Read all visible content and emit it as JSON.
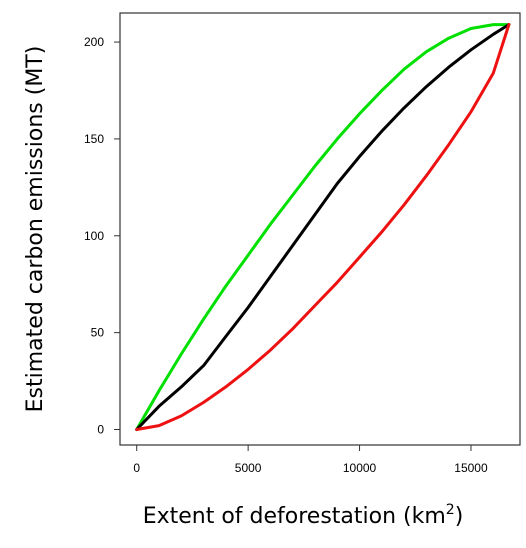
{
  "chart_data": {
    "type": "line",
    "title": "",
    "xlabel": "Extent of deforestation (km",
    "xlabel_superscript": "2",
    "xlabel_suffix": ")",
    "ylabel": "Estimated carbon emissions (MT)",
    "xlim": [
      -750,
      17200
    ],
    "ylim": [
      -8,
      215
    ],
    "xticks": [
      0,
      5000,
      10000,
      15000
    ],
    "yticks": [
      0,
      50,
      100,
      150,
      200
    ],
    "grid": false,
    "legend": "none",
    "series": [
      {
        "color": "#00e000",
        "x": [
          0,
          1000,
          2000,
          3000,
          4000,
          5000,
          6000,
          7000,
          8000,
          9000,
          10000,
          11000,
          12000,
          13000,
          14000,
          15000,
          16000,
          16700
        ],
        "y": [
          0,
          20,
          39,
          57,
          74,
          90,
          106,
          121,
          136,
          150,
          163,
          175,
          186,
          195,
          202,
          207,
          209,
          209
        ]
      },
      {
        "color": "#000000",
        "x": [
          0,
          1000,
          2000,
          3000,
          4000,
          5000,
          6000,
          7000,
          8000,
          9000,
          10000,
          11000,
          12000,
          13000,
          14000,
          15000,
          16000,
          16700
        ],
        "y": [
          0,
          12,
          22,
          33,
          48,
          63,
          79,
          95,
          111,
          127,
          141,
          154,
          166,
          177,
          187,
          196,
          204,
          209
        ]
      },
      {
        "color": "#ee1111",
        "x": [
          0,
          1000,
          2000,
          3000,
          4000,
          5000,
          6000,
          7000,
          8000,
          9000,
          10000,
          11000,
          12000,
          13000,
          14000,
          15000,
          16000,
          16700
        ],
        "y": [
          0,
          2,
          7,
          14,
          22,
          31,
          41,
          52,
          64,
          76,
          89,
          102,
          116,
          131,
          147,
          164,
          184,
          209
        ]
      }
    ]
  }
}
